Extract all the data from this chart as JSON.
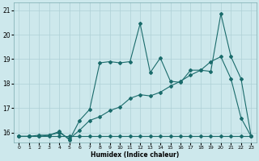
{
  "title": "",
  "xlabel": "Humidex (Indice chaleur)",
  "ylabel": "",
  "xlim": [
    -0.5,
    23.5
  ],
  "ylim": [
    15.6,
    21.3
  ],
  "yticks": [
    16,
    17,
    18,
    19,
    20,
    21
  ],
  "xticks": [
    0,
    1,
    2,
    3,
    4,
    5,
    6,
    7,
    8,
    9,
    10,
    11,
    12,
    13,
    14,
    15,
    16,
    17,
    18,
    19,
    20,
    21,
    22,
    23
  ],
  "bg_color": "#cde8ec",
  "grid_color": "#aed0d6",
  "line_color": "#1a6b6b",
  "line1_y": [
    15.85,
    15.85,
    15.85,
    15.85,
    15.85,
    15.85,
    15.85,
    15.85,
    15.85,
    15.85,
    15.85,
    15.85,
    15.85,
    15.85,
    15.85,
    15.85,
    15.85,
    15.85,
    15.85,
    15.85,
    15.85,
    15.85,
    15.85,
    15.85
  ],
  "line2_y": [
    15.85,
    15.85,
    15.85,
    15.9,
    16.0,
    15.75,
    16.1,
    16.5,
    16.65,
    16.9,
    17.05,
    17.4,
    17.55,
    17.5,
    17.65,
    17.9,
    18.1,
    18.35,
    18.55,
    18.9,
    19.1,
    18.2,
    16.6,
    15.85
  ],
  "line3_y": [
    15.85,
    15.85,
    15.9,
    15.9,
    16.05,
    15.7,
    16.5,
    16.95,
    18.85,
    18.9,
    18.85,
    18.9,
    20.45,
    18.45,
    19.05,
    18.1,
    18.05,
    18.55,
    18.55,
    18.5,
    20.85,
    19.1,
    18.2,
    15.85
  ],
  "marker": "D",
  "markersize": 2.0,
  "linewidth": 0.8
}
